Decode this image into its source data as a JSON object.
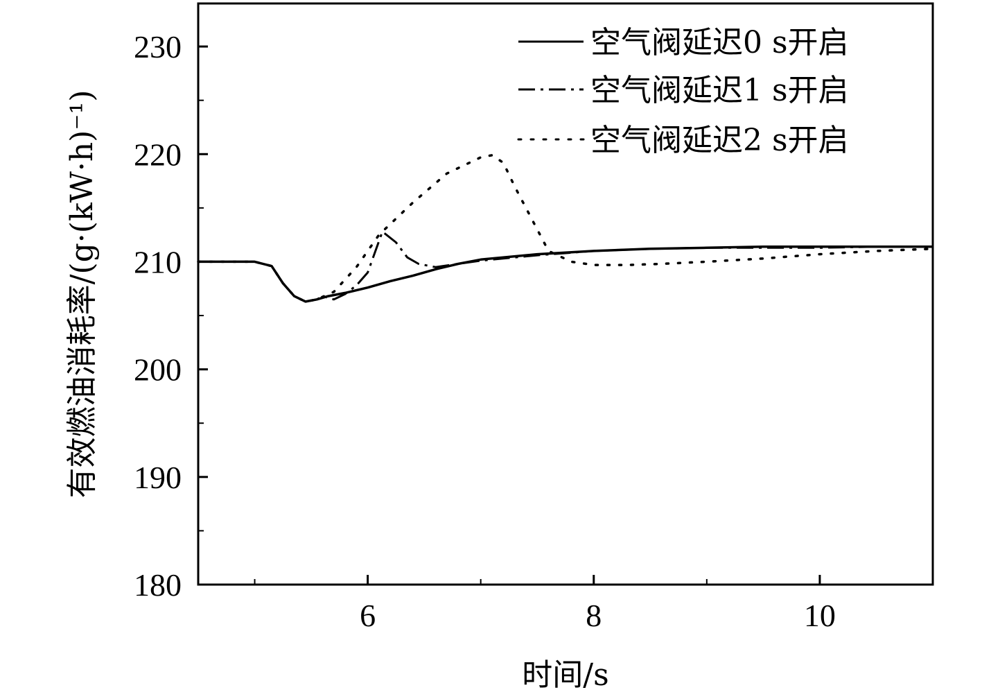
{
  "chart_data": {
    "type": "line",
    "xlabel": "时间/s",
    "ylabel": "有效燃油消耗率/(g·(kW·h)⁻¹)",
    "xlim": [
      4.5,
      11.0
    ],
    "ylim": [
      180,
      234
    ],
    "xticks": [
      6,
      8,
      10
    ],
    "xticks_minor": [
      5,
      7,
      9,
      11
    ],
    "yticks": [
      180,
      190,
      200,
      210,
      220,
      230
    ],
    "yticks_minor": [
      185,
      195,
      205,
      215,
      225
    ],
    "legend_position": "top-right",
    "grid": false,
    "series": [
      {
        "name": "空气阀延迟0 s开启",
        "style": "solid",
        "x": [
          4.5,
          5.0,
          5.15,
          5.25,
          5.35,
          5.45,
          5.55,
          5.65,
          5.8,
          6.0,
          6.2,
          6.4,
          6.6,
          6.8,
          7.0,
          7.5,
          8.0,
          8.5,
          9.0,
          9.5,
          10.0,
          10.5,
          11.0
        ],
        "y": [
          210.0,
          210.0,
          209.6,
          208.0,
          206.8,
          206.3,
          206.5,
          206.8,
          207.1,
          207.6,
          208.2,
          208.7,
          209.3,
          209.8,
          210.2,
          210.7,
          211.0,
          211.2,
          211.3,
          211.4,
          211.4,
          211.4,
          211.4
        ]
      },
      {
        "name": "空气阀延迟1 s开启",
        "style": "dashdot",
        "x": [
          4.5,
          5.0,
          5.15,
          5.25,
          5.35,
          5.45,
          5.55,
          5.6,
          5.7,
          5.8,
          5.9,
          6.0,
          6.13,
          6.25,
          6.35,
          6.45,
          6.6,
          6.8,
          7.0,
          7.5,
          8.0,
          8.5,
          9.0,
          9.5,
          10.0,
          10.5,
          11.0
        ],
        "y": [
          210.0,
          210.0,
          209.6,
          208.0,
          206.8,
          206.3,
          206.5,
          206.8,
          206.5,
          207.0,
          207.8,
          209.0,
          212.8,
          211.8,
          210.4,
          209.8,
          209.5,
          209.8,
          210.1,
          210.6,
          211.0,
          211.2,
          211.3,
          211.3,
          211.3,
          211.4,
          211.4
        ]
      },
      {
        "name": "空气阀延迟2 s开启",
        "style": "dotted",
        "x": [
          4.5,
          5.0,
          5.15,
          5.25,
          5.35,
          5.45,
          5.55,
          5.7,
          5.9,
          6.1,
          6.4,
          6.7,
          7.0,
          7.1,
          7.2,
          7.3,
          7.45,
          7.6,
          7.8,
          8.0,
          8.3,
          8.6,
          9.0,
          9.5,
          10.0,
          10.5,
          11.0
        ],
        "y": [
          210.0,
          210.0,
          209.6,
          208.0,
          206.8,
          206.3,
          206.5,
          207.2,
          209.5,
          212.5,
          215.5,
          218.2,
          219.7,
          219.9,
          219.2,
          217.0,
          214.0,
          211.0,
          210.0,
          209.7,
          209.7,
          209.8,
          210.0,
          210.3,
          210.7,
          211.0,
          211.2
        ]
      }
    ]
  }
}
